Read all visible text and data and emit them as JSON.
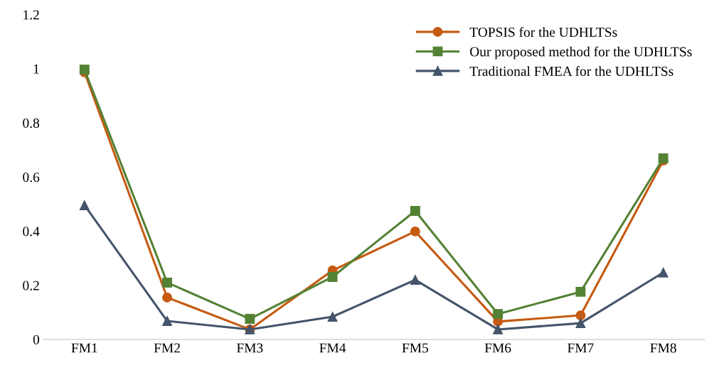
{
  "chart_data": {
    "type": "line",
    "categories": [
      "FM1",
      "FM2",
      "FM3",
      "FM4",
      "FM5",
      "FM6",
      "FM7",
      "FM8"
    ],
    "series": [
      {
        "name": "TOPSIS for the UDHLTSs",
        "color": "#c55a11",
        "marker": "circle",
        "values": [
          0.987,
          0.155,
          0.037,
          0.255,
          0.399,
          0.066,
          0.089,
          0.661
        ]
      },
      {
        "name": "Our proposed method for the UDHLTSs",
        "color": "#548235",
        "marker": "square",
        "values": [
          0.997,
          0.21,
          0.076,
          0.231,
          0.475,
          0.094,
          0.176,
          0.669
        ]
      },
      {
        "name": "Traditional FMEA for the UDHLTSs",
        "color": "#44546a",
        "marker": "triangle",
        "values": [
          0.496,
          0.068,
          0.037,
          0.084,
          0.22,
          0.037,
          0.06,
          0.247
        ]
      }
    ],
    "ylim": [
      0,
      1.2
    ],
    "yticks": [
      0,
      0.2,
      0.4,
      0.6,
      0.8,
      1,
      1.2
    ],
    "grid": false,
    "legend": "top right",
    "line_style": "solid"
  }
}
